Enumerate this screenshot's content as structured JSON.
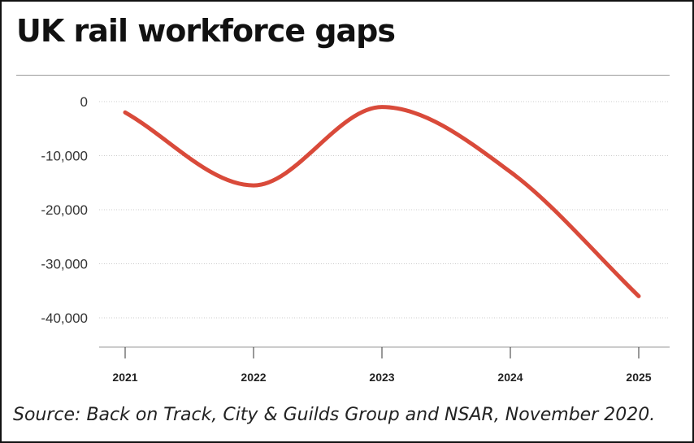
{
  "title": "UK rail workforce gaps",
  "source": "Source: Back on Track, City & Guilds Group and NSAR, November 2020.",
  "chart_data": {
    "type": "line",
    "title": "UK rail workforce gaps",
    "xlabel": "",
    "ylabel": "",
    "x": [
      2021,
      2022,
      2023,
      2024,
      2025
    ],
    "x_tick_labels": [
      "2021",
      "2022",
      "2023",
      "2024",
      "2025"
    ],
    "y_tick_values": [
      0,
      -10000,
      -20000,
      -30000,
      -40000
    ],
    "y_tick_labels": [
      "0",
      "-10,000",
      "-20,000",
      "-30,000",
      "-40,000"
    ],
    "ylim": [
      -45000,
      0
    ],
    "grid": true,
    "series": [
      {
        "values": [
          -2000,
          -15500,
          -1000,
          -13000,
          -36000
        ],
        "color": "#d94a3a"
      }
    ]
  }
}
